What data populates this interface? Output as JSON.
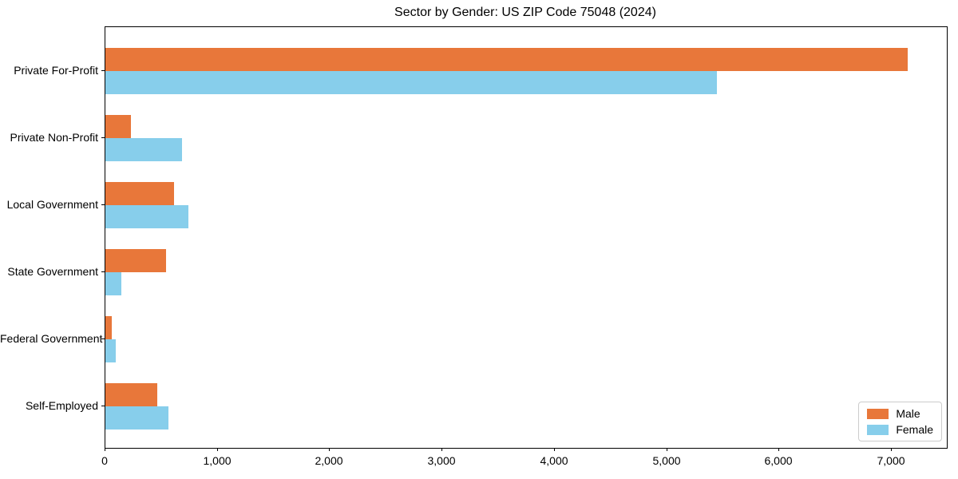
{
  "title": "Sector by Gender: US ZIP Code 75048 (2024)",
  "chart_data": {
    "type": "bar",
    "orientation": "horizontal",
    "title": "Sector by Gender: US ZIP Code 75048 (2024)",
    "categories": [
      "Private For-Profit",
      "Private Non-Profit",
      "Local Government",
      "State Government",
      "Federal Government",
      "Self-Employed"
    ],
    "series": [
      {
        "name": "Male",
        "color": "#e8773a",
        "values": [
          7140,
          230,
          610,
          540,
          60,
          460
        ]
      },
      {
        "name": "Female",
        "color": "#87ceeb",
        "values": [
          5440,
          680,
          740,
          140,
          90,
          560
        ]
      }
    ],
    "xlabel": "",
    "ylabel": "",
    "xlim": [
      0,
      7490
    ],
    "xticks": [
      0,
      1000,
      2000,
      3000,
      4000,
      5000,
      6000,
      7000
    ],
    "xtick_labels": [
      "0",
      "1,000",
      "2,000",
      "3,000",
      "4,000",
      "5,000",
      "6,000",
      "7,000"
    ],
    "grid": false,
    "legend_position": "lower right",
    "legend_items": [
      {
        "label": "Male",
        "color": "#e8773a"
      },
      {
        "label": "Female",
        "color": "#87ceeb"
      }
    ]
  }
}
